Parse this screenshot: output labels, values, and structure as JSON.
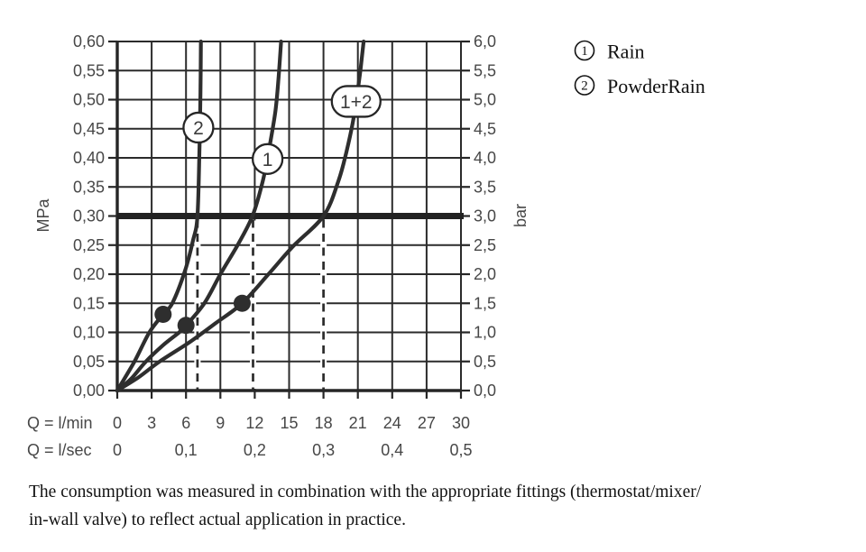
{
  "chart_data": {
    "type": "line",
    "title": "",
    "x_axis_primary": {
      "label": "Q = l/min",
      "ticks": [
        "0",
        "3",
        "6",
        "9",
        "12",
        "15",
        "18",
        "21",
        "24",
        "27",
        "30"
      ],
      "tick_values": [
        0,
        3,
        6,
        9,
        12,
        15,
        18,
        21,
        24,
        27,
        30
      ],
      "range": [
        0,
        30
      ]
    },
    "x_axis_secondary": {
      "label": "Q = l/sec",
      "ticks": [
        "0",
        "0,1",
        "0,2",
        "0,3",
        "0,4",
        "0,5"
      ],
      "tick_positions_lmin": [
        0,
        6,
        12,
        18,
        24,
        30
      ]
    },
    "y_axis_left": {
      "label": "MPa",
      "ticks": [
        "0,00",
        "0,05",
        "0,10",
        "0,15",
        "0,20",
        "0,25",
        "0,30",
        "0,35",
        "0,40",
        "0,45",
        "0,50",
        "0,55",
        "0,60"
      ],
      "tick_step_mpa": 0.05,
      "range": [
        0,
        0.6
      ]
    },
    "y_axis_right": {
      "label": "bar",
      "ticks": [
        "0,0",
        "0,5",
        "1,0",
        "1,5",
        "2,0",
        "2,5",
        "3,0",
        "3,5",
        "4,0",
        "4,5",
        "5,0",
        "5,5",
        "6,0"
      ],
      "tick_step_bar": 0.5,
      "range": [
        0,
        6
      ]
    },
    "grid": true,
    "reference_line": {
      "value_mpa": 0.3,
      "value_bar": 3.0
    },
    "series": [
      {
        "id": "powderrain",
        "badge": "2",
        "badge_shape": "circle",
        "badge_pos": [
          7.08,
          0.452
        ],
        "points": [
          [
            0,
            0
          ],
          [
            1.5,
            0.05
          ],
          [
            2.8,
            0.1
          ],
          [
            4.0,
            0.131
          ],
          [
            4.8,
            0.15
          ],
          [
            5.9,
            0.205
          ],
          [
            6.6,
            0.257
          ],
          [
            7.0,
            0.3
          ],
          [
            7.18,
            0.42
          ],
          [
            7.26,
            0.51
          ],
          [
            7.3,
            0.6
          ]
        ],
        "marker": [
          4.0,
          0.131
        ],
        "drop_line_lmin": 7.0
      },
      {
        "id": "rain",
        "badge": "1",
        "badge_shape": "circle",
        "badge_pos": [
          13.12,
          0.398
        ],
        "points": [
          [
            0,
            0
          ],
          [
            1.2,
            0.02
          ],
          [
            2.5,
            0.05
          ],
          [
            4.0,
            0.078
          ],
          [
            5.4,
            0.1
          ],
          [
            6.0,
            0.112
          ],
          [
            7.6,
            0.15
          ],
          [
            9.0,
            0.2
          ],
          [
            10.5,
            0.25
          ],
          [
            11.8,
            0.3
          ],
          [
            12.7,
            0.36
          ],
          [
            13.3,
            0.42
          ],
          [
            13.8,
            0.48
          ],
          [
            14.05,
            0.53
          ],
          [
            14.3,
            0.6
          ]
        ],
        "marker": [
          6.0,
          0.112
        ],
        "drop_line_lmin": 11.85
      },
      {
        "id": "rain-plus-powderrain",
        "badge": "1+2",
        "badge_shape": "pill",
        "badge_pos": [
          20.85,
          0.497
        ],
        "points": [
          [
            0,
            0
          ],
          [
            1.8,
            0.022
          ],
          [
            3.7,
            0.05
          ],
          [
            6.3,
            0.083
          ],
          [
            8.6,
            0.116
          ],
          [
            10.9,
            0.15
          ],
          [
            13.2,
            0.2
          ],
          [
            15.3,
            0.247
          ],
          [
            18.0,
            0.3
          ],
          [
            19.3,
            0.36
          ],
          [
            20.0,
            0.41
          ],
          [
            20.55,
            0.46
          ],
          [
            20.95,
            0.51
          ],
          [
            21.25,
            0.555
          ],
          [
            21.5,
            0.6
          ]
        ],
        "marker": [
          10.9,
          0.15
        ],
        "drop_line_lmin": 18.0
      }
    ],
    "legend": [
      {
        "symbol": "1",
        "label": "Rain"
      },
      {
        "symbol": "2",
        "label": "PowderRain"
      }
    ],
    "colors": {
      "background": "#ffffff",
      "grid": "#2b2b2b",
      "frame": "#262626",
      "curve": "#2e2e2e",
      "reference": "#222222",
      "text": "#474747",
      "serif_text": "#111111"
    }
  },
  "caption": {
    "line1": "The consumption was measured in combination with the appropriate fittings (thermostat/mixer/",
    "line2": "in-wall valve) to reflect actual application in practice."
  }
}
